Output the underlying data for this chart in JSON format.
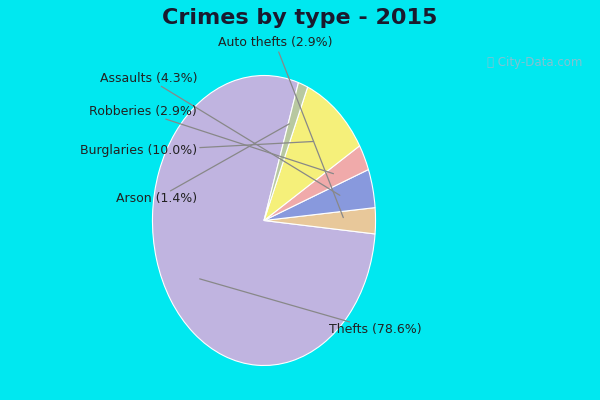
{
  "title": "Crimes by type - 2015",
  "slices": [
    {
      "label": "Thefts",
      "pct": 78.6,
      "color": "#c0b4e0"
    },
    {
      "label": "Auto thefts",
      "pct": 2.9,
      "color": "#e8c89a"
    },
    {
      "label": "Assaults",
      "pct": 4.3,
      "color": "#8899dd"
    },
    {
      "label": "Robberies",
      "pct": 2.9,
      "color": "#f0aaaa"
    },
    {
      "label": "Burglaries",
      "pct": 10.0,
      "color": "#f5f07a"
    },
    {
      "label": "Arson",
      "pct": 1.4,
      "color": "#b8c8a0"
    }
  ],
  "bg_cyan": "#00e8f0",
  "bg_green_light": "#d0e8d0",
  "bg_green_mid": "#c0dcc0",
  "title_fontsize": 16,
  "label_fontsize": 9,
  "watermark": "ⓘ City-Data.com",
  "startangle": 72,
  "label_annotations": [
    {
      "text": "Auto thefts (2.9%)",
      "xt": 0.09,
      "yt": 1.13,
      "ha": "center"
    },
    {
      "text": "Assaults (4.3%)",
      "xt": -0.28,
      "yt": 1.02,
      "ha": "right"
    },
    {
      "text": "Robberies (2.9%)",
      "xt": -0.38,
      "yt": 0.85,
      "ha": "right"
    },
    {
      "text": "Burglaries (10.0%)",
      "xt": -0.48,
      "yt": 0.58,
      "ha": "right"
    },
    {
      "text": "Arson (1.4%)",
      "xt": -0.54,
      "yt": 0.22,
      "ha": "right"
    },
    {
      "text": "Thefts (78.6%)",
      "xt": 0.72,
      "yt": -0.82,
      "ha": "left"
    }
  ]
}
